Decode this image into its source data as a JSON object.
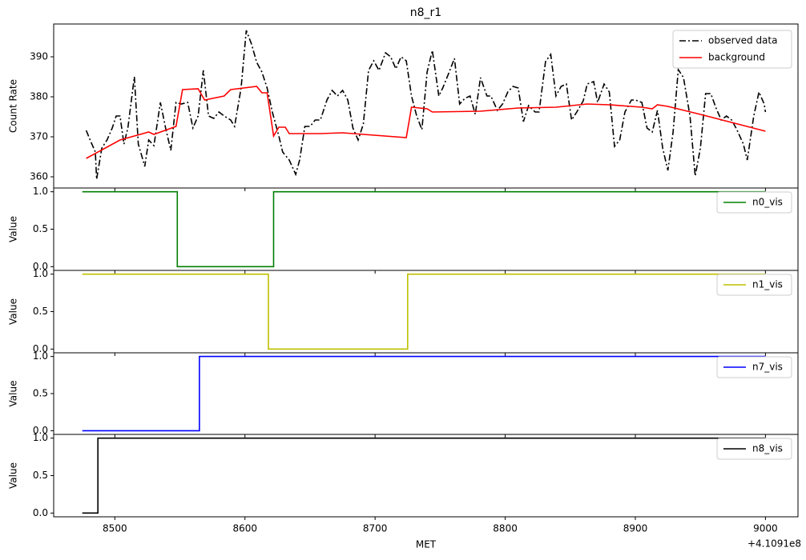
{
  "chart_data": [
    {
      "type": "line",
      "title": "n8_r1",
      "ylabel": "Count Rate",
      "xlim": [
        8453,
        9025
      ],
      "xticks": [
        8500,
        8600,
        8700,
        8800,
        8900,
        9000
      ],
      "ylim": [
        357.2,
        398.2
      ],
      "yticks": [
        360,
        370,
        380,
        390
      ],
      "legend": "upper right",
      "series": [
        {
          "name": "observed data",
          "color": "#000000",
          "linestyle": "dashdot",
          "x": [
            8478,
            8481,
            8485,
            8486,
            8490,
            8494,
            8498,
            8501,
            8504,
            8507,
            8510,
            8515,
            8518,
            8523,
            8526,
            8530,
            8535,
            8539,
            8543,
            8547,
            8551,
            8556,
            8560,
            8564,
            8568,
            8572,
            8576,
            8580,
            8584,
            8589,
            8592,
            8597,
            8601,
            8605,
            8609,
            8613,
            8617,
            8621,
            8626,
            8629,
            8634,
            8639,
            8642,
            8646,
            8650,
            8654,
            8658,
            8663,
            8667,
            8671,
            8675,
            8679,
            8683,
            8687,
            8691,
            8695,
            8699,
            8703,
            8708,
            8712,
            8716,
            8720,
            8724,
            8728,
            8732,
            8736,
            8740,
            8744,
            8749,
            8752,
            8757,
            8761,
            8765,
            8769,
            8773,
            8777,
            8781,
            8786,
            8789,
            8794,
            8798,
            8802,
            8806,
            8810,
            8814,
            8818,
            8823,
            8826,
            8831,
            8835,
            8839,
            8843,
            8847,
            8851,
            8855,
            8860,
            8863,
            8868,
            8871,
            8876,
            8880,
            8884,
            8888,
            8892,
            8897,
            8900,
            8905,
            8909,
            8913,
            8917,
            8921,
            8925,
            8929,
            8933,
            8937,
            8942,
            8946,
            8950,
            8954,
            8958,
            8962,
            8966,
            8970,
            8974,
            8978,
            8983,
            8986,
            8991,
            8995,
            8999,
            9000
          ],
          "values": [
            371.6,
            369.2,
            366.2,
            359.4,
            367.2,
            369.2,
            372.2,
            375.2,
            375.2,
            368.2,
            372.2,
            385,
            368.2,
            362.6,
            369.2,
            367.8,
            378.6,
            372.2,
            366.6,
            378.6,
            378.2,
            378.6,
            372.2,
            375.2,
            386.6,
            375.2,
            374.6,
            376.2,
            375.2,
            374.2,
            372.6,
            382.2,
            396.6,
            393.2,
            388.6,
            386.2,
            382.2,
            376.2,
            370.2,
            366.2,
            364.2,
            360.6,
            364.2,
            372.6,
            372.6,
            374.2,
            374.2,
            379.2,
            381.6,
            380.2,
            381.6,
            379.2,
            372.2,
            369.2,
            373.2,
            386.6,
            389,
            386.6,
            391,
            390,
            387,
            390,
            389,
            380.2,
            375.2,
            371.8,
            386.2,
            391.6,
            380.2,
            382.2,
            386.2,
            389.6,
            378.2,
            379.6,
            380.2,
            375.6,
            384.8,
            380.2,
            380.2,
            376.6,
            378.2,
            381.2,
            382.6,
            382.2,
            373.8,
            377.8,
            376.2,
            376.2,
            388.8,
            390.6,
            380.2,
            382.6,
            383.2,
            374.2,
            376.2,
            379,
            383.2,
            383.8,
            378.6,
            383.2,
            381.2,
            367.6,
            369.2,
            376.2,
            379.2,
            379.2,
            378.6,
            372.2,
            371.2,
            376.6,
            367.2,
            361.6,
            371.2,
            386.8,
            384.8,
            375.2,
            360.2,
            367.2,
            380.8,
            380.8,
            377.2,
            374.2,
            375.2,
            374.2,
            371.8,
            368.2,
            364.2,
            375.2,
            381.2,
            378.2,
            376.2
          ]
        },
        {
          "name": "background",
          "color": "#ff0000",
          "linestyle": "solid",
          "x": [
            8478,
            8504,
            8526,
            8530,
            8547,
            8552,
            8564,
            8569,
            8584,
            8589,
            8609,
            8613,
            8617,
            8622,
            8626,
            8631,
            8634,
            8658,
            8675,
            8724,
            8728,
            8740,
            8744,
            8781,
            8810,
            8839,
            8863,
            8880,
            8905,
            8913,
            8917,
            8925,
            8950,
            9000
          ],
          "values": [
            364.6,
            369.2,
            371.2,
            370.6,
            372.6,
            381.8,
            382,
            379.2,
            380.2,
            381.8,
            382.6,
            381,
            381,
            370.2,
            372.4,
            372.4,
            370.8,
            370.8,
            371,
            369.8,
            377.4,
            377,
            376.2,
            376.4,
            377.2,
            377.4,
            378.2,
            378,
            377.4,
            377,
            378,
            377.6,
            375.6,
            371.4
          ]
        }
      ]
    },
    {
      "type": "line",
      "ylabel": "Value",
      "xlim": [
        8453,
        9025
      ],
      "xticks": [
        8500,
        8600,
        8700,
        8800,
        8900,
        9000
      ],
      "ylim": [
        -0.05,
        1.05
      ],
      "yticks": [
        {
          "value": 0,
          "label": "0.0"
        },
        0.5,
        {
          "value": 1,
          "label": "1.0"
        }
      ],
      "legend": "upper right",
      "series": [
        {
          "name": "n0_vis",
          "color": "#008000",
          "linestyle": "solid",
          "x": [
            8475,
            8548,
            8548,
            8622,
            8622,
            9000
          ],
          "values": [
            1,
            1,
            0,
            0,
            1,
            1
          ]
        }
      ]
    },
    {
      "type": "line",
      "ylabel": "Value",
      "xlim": [
        8453,
        9025
      ],
      "xticks": [
        8500,
        8600,
        8700,
        8800,
        8900,
        9000
      ],
      "ylim": [
        -0.05,
        1.05
      ],
      "yticks": [
        {
          "value": 0,
          "label": "0.0"
        },
        0.5,
        {
          "value": 1,
          "label": "1.0"
        }
      ],
      "legend": "upper right",
      "series": [
        {
          "name": "n1_vis",
          "color": "#bfbf00",
          "linestyle": "solid",
          "x": [
            8475,
            8618,
            8618,
            8725,
            8725,
            9000
          ],
          "values": [
            1,
            1,
            0,
            0,
            1,
            1
          ]
        }
      ]
    },
    {
      "type": "line",
      "ylabel": "Value",
      "xlim": [
        8453,
        9025
      ],
      "xticks": [
        8500,
        8600,
        8700,
        8800,
        8900,
        9000
      ],
      "ylim": [
        -0.05,
        1.05
      ],
      "yticks": [
        {
          "value": 0,
          "label": "0.0"
        },
        0.5,
        {
          "value": 1,
          "label": "1.0"
        }
      ],
      "legend": "upper right",
      "series": [
        {
          "name": "n7_vis",
          "color": "#0000ff",
          "linestyle": "solid",
          "x": [
            8475,
            8565,
            8565,
            9000
          ],
          "values": [
            0,
            0,
            1,
            1
          ]
        }
      ]
    },
    {
      "type": "line",
      "ylabel": "Value",
      "xlabel": "MET",
      "x_offset": "+4.1091e8",
      "show_xtick_labels": true,
      "xlim": [
        8453,
        9025
      ],
      "xticks": [
        8500,
        8600,
        8700,
        8800,
        8900,
        9000
      ],
      "ylim": [
        -0.05,
        1.05
      ],
      "yticks": [
        {
          "value": 0,
          "label": "0.0"
        },
        0.5,
        {
          "value": 1,
          "label": "1.0"
        }
      ],
      "legend": "upper right",
      "series": [
        {
          "name": "n8_vis",
          "color": "#000000",
          "linestyle": "solid",
          "x": [
            8475,
            8487,
            8487,
            9000
          ],
          "values": [
            0,
            0,
            1,
            1
          ]
        }
      ]
    }
  ]
}
